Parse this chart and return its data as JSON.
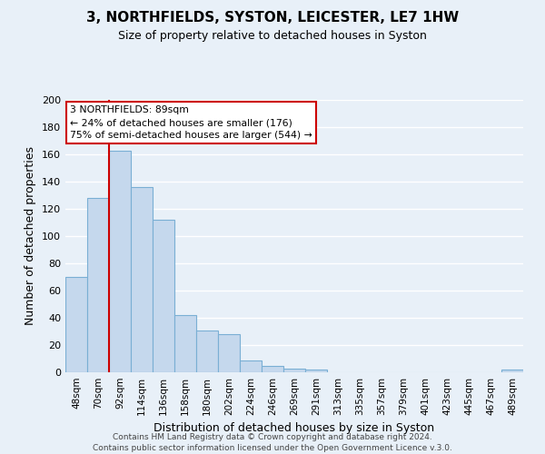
{
  "title": "3, NORTHFIELDS, SYSTON, LEICESTER, LE7 1HW",
  "subtitle": "Size of property relative to detached houses in Syston",
  "xlabel": "Distribution of detached houses by size in Syston",
  "ylabel": "Number of detached properties",
  "bar_labels": [
    "48sqm",
    "70sqm",
    "92sqm",
    "114sqm",
    "136sqm",
    "158sqm",
    "180sqm",
    "202sqm",
    "224sqm",
    "246sqm",
    "269sqm",
    "291sqm",
    "313sqm",
    "335sqm",
    "357sqm",
    "379sqm",
    "401sqm",
    "423sqm",
    "445sqm",
    "467sqm",
    "489sqm"
  ],
  "bar_values": [
    70,
    128,
    163,
    136,
    112,
    42,
    31,
    28,
    9,
    5,
    3,
    2,
    0,
    0,
    0,
    0,
    0,
    0,
    0,
    0,
    2
  ],
  "bar_color": "#c5d8ed",
  "bar_edge_color": "#7aafd4",
  "background_color": "#e8f0f8",
  "grid_color": "#ffffff",
  "marker_line_color": "#cc0000",
  "ylim": [
    0,
    200
  ],
  "yticks": [
    0,
    20,
    40,
    60,
    80,
    100,
    120,
    140,
    160,
    180,
    200
  ],
  "annotation_line1": "3 NORTHFIELDS: 89sqm",
  "annotation_line2": "← 24% of detached houses are smaller (176)",
  "annotation_line3": "75% of semi-detached houses are larger (544) →",
  "footer_line1": "Contains HM Land Registry data © Crown copyright and database right 2024.",
  "footer_line2": "Contains public sector information licensed under the Open Government Licence v.3.0."
}
